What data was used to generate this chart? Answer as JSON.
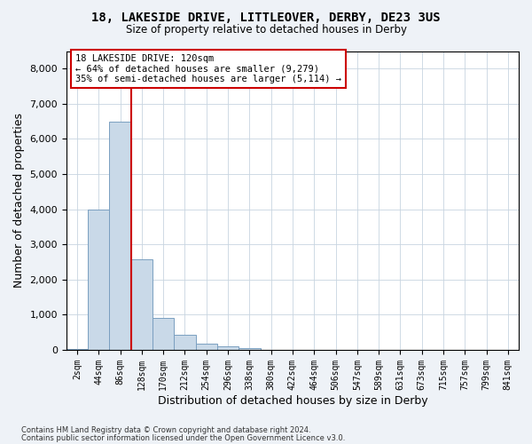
{
  "title1": "18, LAKESIDE DRIVE, LITTLEOVER, DERBY, DE23 3US",
  "title2": "Size of property relative to detached houses in Derby",
  "xlabel": "Distribution of detached houses by size in Derby",
  "ylabel": "Number of detached properties",
  "bin_labels": [
    "2sqm",
    "44sqm",
    "86sqm",
    "128sqm",
    "170sqm",
    "212sqm",
    "254sqm",
    "296sqm",
    "338sqm",
    "380sqm",
    "422sqm",
    "464sqm",
    "506sqm",
    "547sqm",
    "589sqm",
    "631sqm",
    "673sqm",
    "715sqm",
    "757sqm",
    "799sqm",
    "841sqm"
  ],
  "bar_values": [
    30,
    3980,
    6490,
    2580,
    900,
    430,
    170,
    110,
    60,
    0,
    0,
    0,
    0,
    0,
    0,
    0,
    0,
    0,
    0,
    0,
    0
  ],
  "bar_color": "#c9d9e8",
  "bar_edge_color": "#7a9fc0",
  "vline_x": 3.0,
  "vline_color": "#cc0000",
  "annotation_line1": "18 LAKESIDE DRIVE: 120sqm",
  "annotation_line2": "← 64% of detached houses are smaller (9,279)",
  "annotation_line3": "35% of semi-detached houses are larger (5,114) →",
  "annotation_box_color": "#ffffff",
  "annotation_box_edge": "#cc0000",
  "ylim": [
    0,
    8500
  ],
  "yticks": [
    0,
    1000,
    2000,
    3000,
    4000,
    5000,
    6000,
    7000,
    8000
  ],
  "footer1": "Contains HM Land Registry data © Crown copyright and database right 2024.",
  "footer2": "Contains public sector information licensed under the Open Government Licence v3.0.",
  "background_color": "#eef2f7",
  "plot_bg_color": "#ffffff",
  "grid_color": "#c8d4e0"
}
